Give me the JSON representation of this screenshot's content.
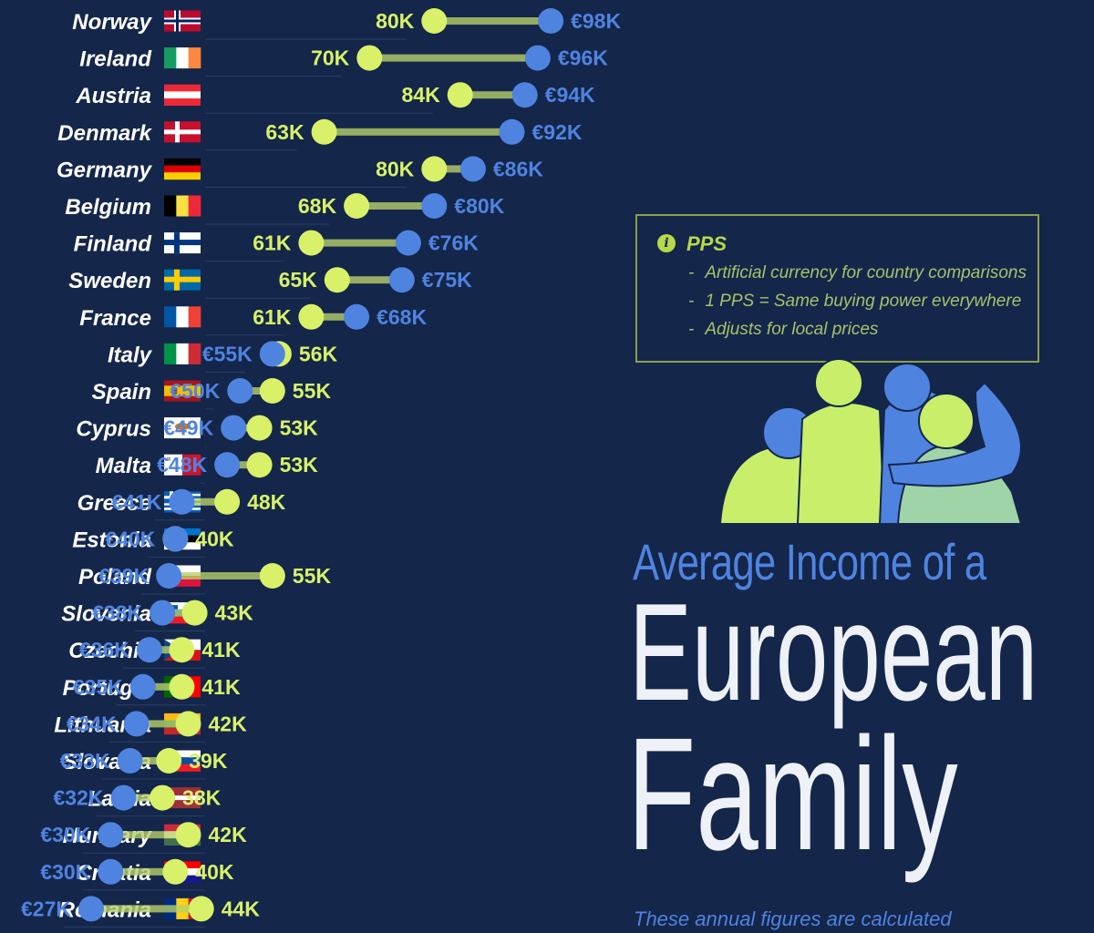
{
  "title": {
    "subtitle": "Average Income of a",
    "line1": "European",
    "line2": "Family"
  },
  "footnote": "These annual figures are calculated",
  "pps_box": {
    "title": "PPS",
    "items": [
      "Artificial currency for country comparisons",
      "1 PPS = Same buying power everywhere",
      "Adjusts for local prices"
    ]
  },
  "colors": {
    "background": "#14264a",
    "euro": "#4f83e0",
    "pps": "#d8f169",
    "box_border": "#8aa04a"
  },
  "chart_data": {
    "type": "dumbbell",
    "x_unit": "thousand",
    "series": [
      {
        "key": "eur",
        "label_prefix": "€",
        "label_suffix": "K"
      },
      {
        "key": "pps",
        "label_prefix": "",
        "label_suffix": "K"
      }
    ],
    "rows": [
      {
        "country": "Norway",
        "flag": "norway-flag",
        "eur": 98,
        "pps": 80
      },
      {
        "country": "Ireland",
        "flag": "ireland-flag",
        "eur": 96,
        "pps": 70
      },
      {
        "country": "Austria",
        "flag": "austria-flag",
        "eur": 94,
        "pps": 84
      },
      {
        "country": "Denmark",
        "flag": "denmark-flag",
        "eur": 92,
        "pps": 63
      },
      {
        "country": "Germany",
        "flag": "germany-flag",
        "eur": 86,
        "pps": 80
      },
      {
        "country": "Belgium",
        "flag": "belgium-flag",
        "eur": 80,
        "pps": 68
      },
      {
        "country": "Finland",
        "flag": "finland-flag",
        "eur": 76,
        "pps": 61
      },
      {
        "country": "Sweden",
        "flag": "sweden-flag",
        "eur": 75,
        "pps": 65
      },
      {
        "country": "France",
        "flag": "france-flag",
        "eur": 68,
        "pps": 61
      },
      {
        "country": "Italy",
        "flag": "italy-flag",
        "eur": 55,
        "pps": 56
      },
      {
        "country": "Spain",
        "flag": "spain-flag",
        "eur": 50,
        "pps": 55
      },
      {
        "country": "Cyprus",
        "flag": "cyprus-flag",
        "eur": 49,
        "pps": 53
      },
      {
        "country": "Malta",
        "flag": "malta-flag",
        "eur": 48,
        "pps": 53
      },
      {
        "country": "Greece",
        "flag": "greece-flag",
        "eur": 41,
        "pps": 48
      },
      {
        "country": "Estonia",
        "flag": "estonia-flag",
        "eur": 40,
        "pps": 40
      },
      {
        "country": "Poland",
        "flag": "poland-flag",
        "eur": 39,
        "pps": 55
      },
      {
        "country": "Slovenia",
        "flag": "slovenia-flag",
        "eur": 38,
        "pps": 43
      },
      {
        "country": "Czechia",
        "flag": "czechia-flag",
        "eur": 36,
        "pps": 41
      },
      {
        "country": "Portugal",
        "flag": "portugal-flag",
        "eur": 35,
        "pps": 41
      },
      {
        "country": "Lithuania",
        "flag": "lithuania-flag",
        "eur": 34,
        "pps": 42
      },
      {
        "country": "Slovakia",
        "flag": "slovakia-flag",
        "eur": 33,
        "pps": 39
      },
      {
        "country": "Latvia",
        "flag": "latvia-flag",
        "eur": 32,
        "pps": 38
      },
      {
        "country": "Hungary",
        "flag": "hungary-flag",
        "eur": 30,
        "pps": 42
      },
      {
        "country": "Croatia",
        "flag": "croatia-flag",
        "eur": 30,
        "pps": 40
      },
      {
        "country": "Romania",
        "flag": "romania-flag",
        "eur": 27,
        "pps": 44
      }
    ]
  }
}
